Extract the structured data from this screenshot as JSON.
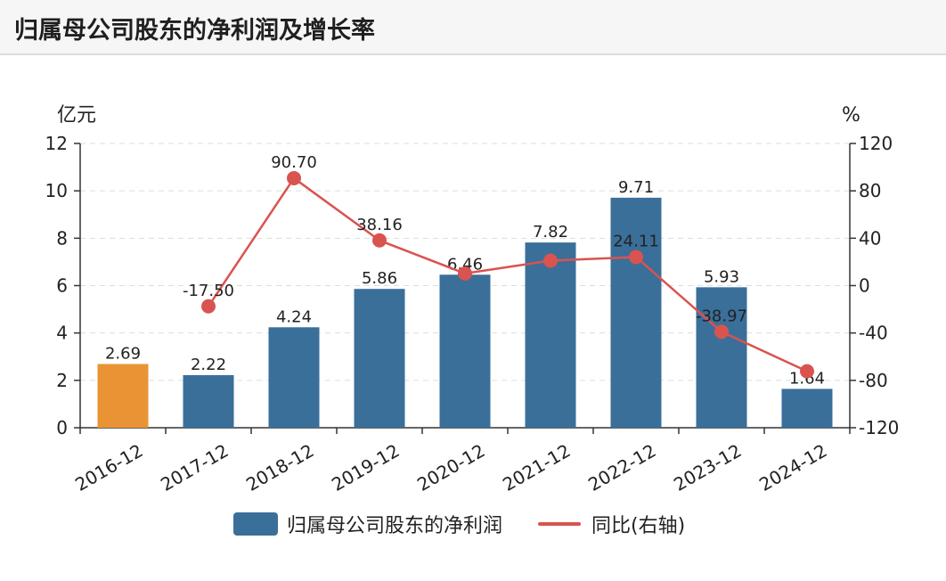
{
  "title": "归属母公司股东的净利润及增长率",
  "colors": {
    "bar": "#3a6f9a",
    "bar_highlight": "#ea9335",
    "line": "#d9534f",
    "grid": "#dddddd",
    "axis": "#333333"
  },
  "chart_data": {
    "type": "bar",
    "categories": [
      "2016-12",
      "2017-12",
      "2018-12",
      "2019-12",
      "2020-12",
      "2021-12",
      "2022-12",
      "2023-12",
      "2024-12"
    ],
    "left_axis": {
      "unit": "亿元",
      "ylim": [
        0,
        12
      ],
      "ticks": [
        "0",
        "2",
        "4",
        "6",
        "8",
        "10",
        "12"
      ]
    },
    "right_axis": {
      "unit": "%",
      "ylim": [
        -120,
        120
      ],
      "ticks": [
        "-120",
        "-80",
        "-40",
        "0",
        "40",
        "80",
        "120"
      ]
    },
    "series": [
      {
        "name": "归属母公司股东的净利润",
        "type": "bar",
        "axis": "left",
        "values": [
          2.69,
          2.22,
          4.24,
          5.86,
          6.46,
          7.82,
          9.71,
          5.93,
          1.64
        ],
        "labels": [
          "2.69",
          "2.22",
          "4.24",
          "5.86",
          "6.46",
          "7.82",
          "9.71",
          "5.93",
          "1.64"
        ]
      },
      {
        "name": "同比(右轴)",
        "type": "line",
        "axis": "right",
        "values": [
          null,
          -17.5,
          90.7,
          38.16,
          10.24,
          21.05,
          24.11,
          -38.97,
          -72.34
        ],
        "labels": [
          null,
          "-17.50",
          "90.70",
          "38.16",
          null,
          null,
          "24.11",
          "-38.97",
          null
        ]
      }
    ],
    "highlight_index": 0,
    "grid": true,
    "legend_position": "bottom"
  }
}
